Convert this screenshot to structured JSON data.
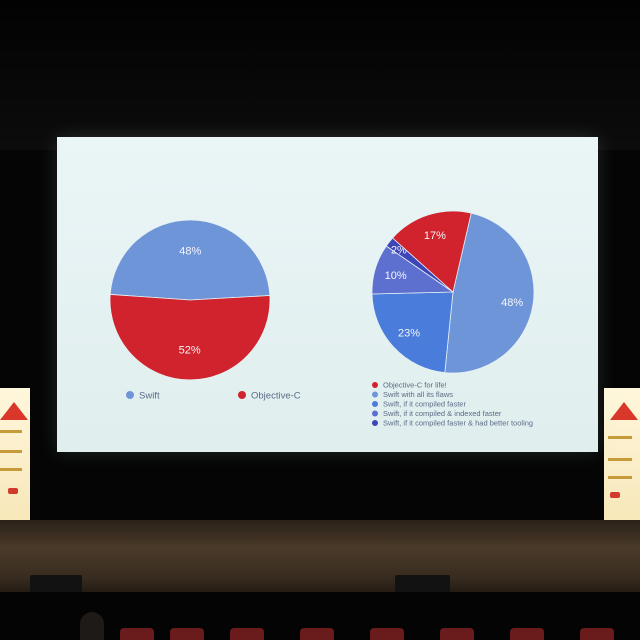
{
  "chart_data": [
    {
      "type": "pie",
      "title": "",
      "slices": [
        {
          "label": "Swift",
          "value": 48,
          "value_label": "48%",
          "color": "#6f95d9"
        },
        {
          "label": "Objective-C",
          "value": 52,
          "value_label": "52%",
          "color": "#d1232d"
        }
      ],
      "legend_position": "bottom"
    },
    {
      "type": "pie",
      "title": "",
      "slices": [
        {
          "label": "Swift with all its flaws",
          "value": 48,
          "value_label": "48%",
          "color": "#6f95d9"
        },
        {
          "label": "Swift, if it compiled faster",
          "value": 23,
          "value_label": "23%",
          "color": "#4a7cdb"
        },
        {
          "label": "Swift, if it compiled & indexed faster",
          "value": 10,
          "value_label": "10%",
          "color": "#5d70d0"
        },
        {
          "label": "Swift, if it compiled faster & had better tooling",
          "value": 2,
          "value_label": "2%",
          "color": "#3e45b8"
        },
        {
          "label": "Objective-C for life!",
          "value": 17,
          "value_label": "17%",
          "color": "#d1232d"
        }
      ],
      "legend_order": [
        "Objective-C for life!",
        "Swift with all its flaws",
        "Swift, if it compiled faster",
        "Swift, if it compiled & indexed faster",
        "Swift, if it compiled faster & had better tooling"
      ],
      "legend_position": "bottom"
    }
  ]
}
